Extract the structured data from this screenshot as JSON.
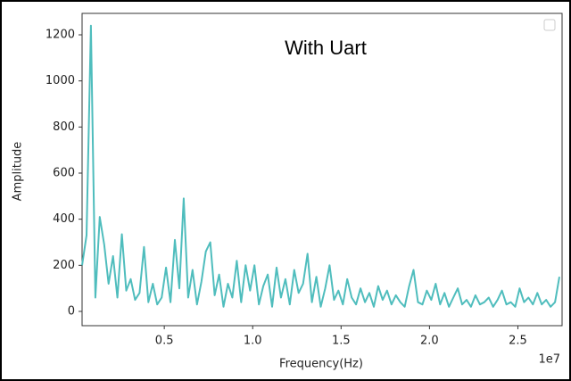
{
  "chart_data": {
    "type": "line",
    "title": "With Uart",
    "xlabel": "Frequency(Hz)",
    "ylabel": "Amplitude",
    "x_offset_label": "1e7",
    "x": [
      0.035,
      0.06,
      0.085,
      0.11,
      0.135,
      0.16,
      0.185,
      0.21,
      0.235,
      0.26,
      0.285,
      0.31,
      0.335,
      0.36,
      0.385,
      0.41,
      0.435,
      0.46,
      0.485,
      0.51,
      0.535,
      0.56,
      0.585,
      0.61,
      0.635,
      0.66,
      0.685,
      0.71,
      0.735,
      0.76,
      0.785,
      0.81,
      0.835,
      0.86,
      0.885,
      0.91,
      0.935,
      0.96,
      0.985,
      1.01,
      1.035,
      1.06,
      1.085,
      1.11,
      1.135,
      1.16,
      1.185,
      1.21,
      1.235,
      1.26,
      1.285,
      1.31,
      1.335,
      1.36,
      1.385,
      1.41,
      1.435,
      1.46,
      1.485,
      1.51,
      1.535,
      1.56,
      1.585,
      1.61,
      1.635,
      1.66,
      1.685,
      1.71,
      1.735,
      1.76,
      1.785,
      1.81,
      1.835,
      1.86,
      1.885,
      1.91,
      1.935,
      1.96,
      1.985,
      2.01,
      2.035,
      2.06,
      2.085,
      2.11,
      2.135,
      2.16,
      2.185,
      2.21,
      2.235,
      2.26,
      2.285,
      2.31,
      2.335,
      2.36,
      2.385,
      2.41,
      2.435,
      2.46,
      2.485,
      2.51,
      2.535,
      2.56,
      2.585,
      2.61,
      2.635,
      2.66,
      2.685,
      2.71,
      2.735
    ],
    "values": [
      200,
      330,
      1240,
      60,
      410,
      290,
      120,
      240,
      60,
      335,
      90,
      140,
      50,
      80,
      280,
      40,
      120,
      30,
      60,
      190,
      40,
      310,
      100,
      490,
      60,
      180,
      30,
      130,
      260,
      300,
      70,
      160,
      20,
      120,
      60,
      220,
      40,
      200,
      90,
      200,
      30,
      110,
      160,
      20,
      190,
      60,
      140,
      30,
      180,
      80,
      120,
      250,
      40,
      150,
      20,
      100,
      200,
      50,
      90,
      30,
      140,
      60,
      30,
      100,
      40,
      80,
      20,
      110,
      50,
      90,
      30,
      70,
      40,
      20,
      110,
      180,
      40,
      30,
      90,
      50,
      120,
      30,
      80,
      20,
      60,
      100,
      30,
      50,
      20,
      70,
      30,
      40,
      60,
      20,
      50,
      90,
      30,
      40,
      20,
      100,
      40,
      60,
      30,
      80,
      30,
      50,
      20,
      40,
      150
    ],
    "color": "#4fbdbd",
    "xlim": [
      0.035,
      2.75
    ],
    "ylim": [
      -62,
      1293
    ],
    "xticks": [
      0.5,
      {
        "value": 1,
        "label": "1.0"
      },
      1.5,
      {
        "value": 2,
        "label": "2.0"
      },
      2.5
    ],
    "yticks": [
      0,
      200,
      400,
      600,
      800,
      1000,
      1200
    ],
    "legend": "upper right"
  }
}
